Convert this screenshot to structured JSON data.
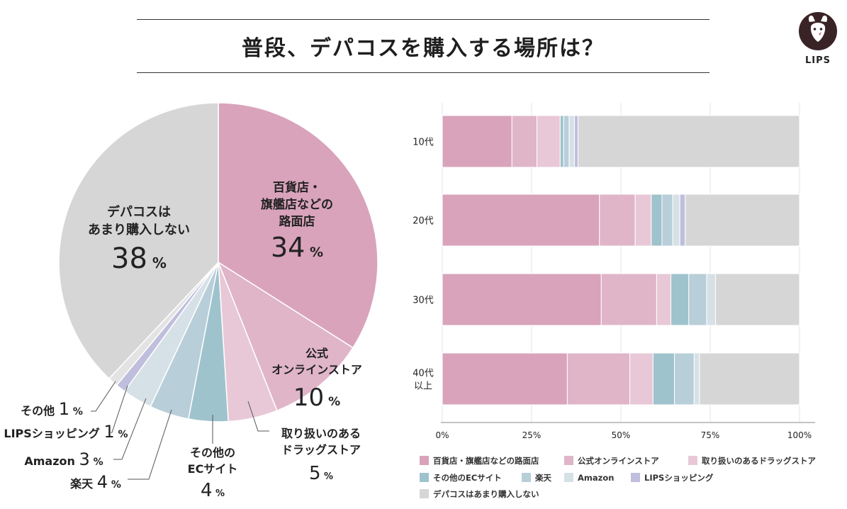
{
  "title": "普段、デパコスを購入する場所は？",
  "logo": {
    "text": "LIPS",
    "icon": "deer-icon",
    "color": "#3a2326"
  },
  "pie_labels": [
    {
      "lines": [
        "百貨店・",
        "旗艦店などの",
        "路面店"
      ],
      "value": "34",
      "unit": "%"
    },
    {
      "lines": [
        "公式",
        "オンラインストア"
      ],
      "value": "10",
      "unit": "%"
    },
    {
      "lines": [
        "取り扱いのある",
        "ドラッグストア"
      ],
      "value": "5",
      "unit": "%"
    },
    {
      "lines": [
        "その他の",
        "ECサイト"
      ],
      "value": "4",
      "unit": "%"
    },
    {
      "lines": [
        "楽天"
      ],
      "value": "4",
      "unit": "%"
    },
    {
      "lines": [
        "Amazon"
      ],
      "value": "3",
      "unit": "%"
    },
    {
      "lines": [
        "LIPSショッピング"
      ],
      "value": "1",
      "unit": "%"
    },
    {
      "lines": [
        "その他"
      ],
      "value": "1",
      "unit": "%"
    },
    {
      "lines": [
        "デパコスは",
        "あまり購入しない"
      ],
      "value": "38",
      "unit": "%"
    }
  ],
  "chart_data": [
    {
      "type": "pie",
      "title": "普段、デパコスを購入する場所は？",
      "categories": [
        "百貨店・旗艦店などの路面店",
        "公式オンラインストア",
        "取り扱いのあるドラッグストア",
        "その他のECサイト",
        "楽天",
        "Amazon",
        "LIPSショッピング",
        "その他",
        "デパコスはあまり購入しない"
      ],
      "values": [
        34,
        10,
        5,
        4,
        4,
        3,
        1,
        1,
        38
      ],
      "unit": "%",
      "colors": [
        "#d9a3bb",
        "#e0b5c8",
        "#e8c8d6",
        "#9fc3cd",
        "#b8ced9",
        "#d6e1e7",
        "#c0bedd",
        "#e3e3e3",
        "#d6d6d6"
      ]
    },
    {
      "type": "bar",
      "orientation": "horizontal",
      "stacked": true,
      "categories": [
        "10代",
        "20代",
        "30代",
        "40代以上"
      ],
      "category_lines": [
        [
          "10代"
        ],
        [
          "20代"
        ],
        [
          "30代"
        ],
        [
          "40代",
          "以上"
        ]
      ],
      "xlim": [
        0,
        100
      ],
      "xticks": [
        "0%",
        "25%",
        "50%",
        "75%",
        "100%"
      ],
      "grid": true,
      "legend_position": "bottom",
      "series": [
        {
          "name": "百貨店・旗艦店などの路面店",
          "color": "#d9a3bb",
          "values": [
            19.5,
            44,
            44.5,
            35
          ]
        },
        {
          "name": "公式オンラインストア",
          "color": "#e0b5c8",
          "values": [
            7,
            10,
            15.5,
            17.5
          ]
        },
        {
          "name": "取り扱いのあるドラッグストア",
          "color": "#e8c8d6",
          "values": [
            6.5,
            4.5,
            4,
            6.5
          ]
        },
        {
          "name": "その他のECサイト",
          "color": "#9fc3cd",
          "values": [
            1,
            3,
            5,
            6
          ]
        },
        {
          "name": "楽天",
          "color": "#b8ced9",
          "values": [
            1.5,
            3,
            5,
            5.5
          ]
        },
        {
          "name": "Amazon",
          "color": "#d6e1e7",
          "values": [
            1.5,
            2,
            2.5,
            1.5
          ]
        },
        {
          "name": "LIPSショッピング",
          "color": "#c0bedd",
          "values": [
            1,
            1.5,
            0,
            0
          ]
        },
        {
          "name": "デパコスはあまり購入しない",
          "color": "#d6d6d6",
          "values": [
            62,
            32,
            23.5,
            28
          ]
        }
      ]
    }
  ]
}
